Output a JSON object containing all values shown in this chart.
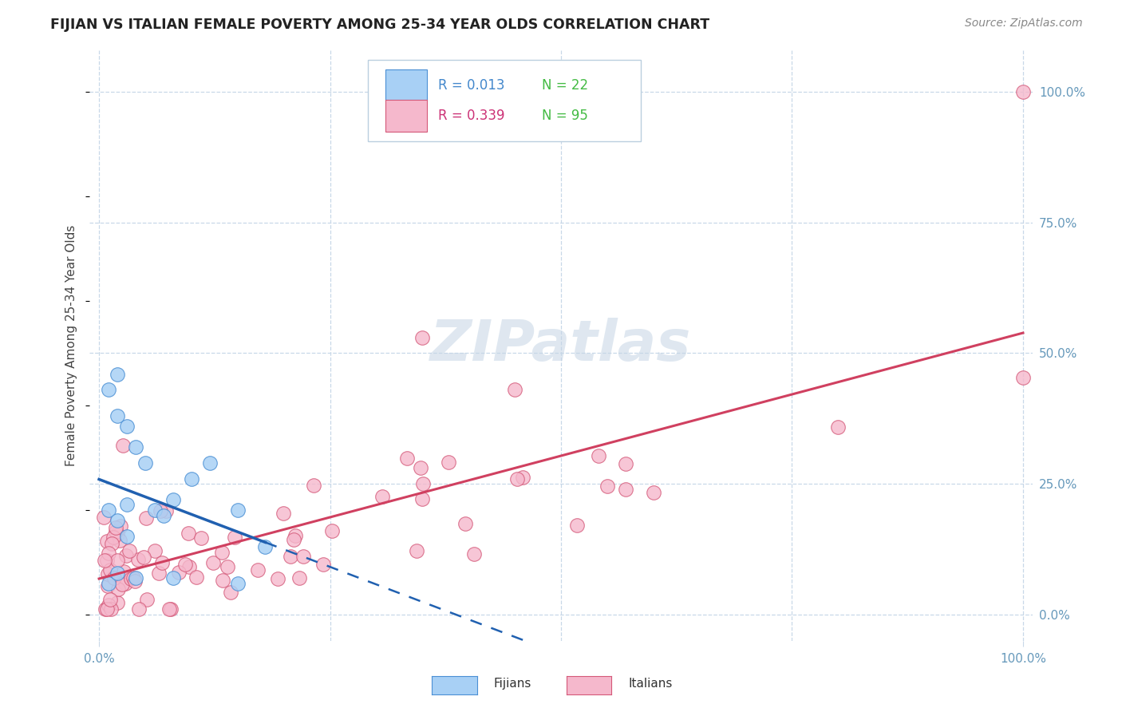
{
  "title": "FIJIAN VS ITALIAN FEMALE POVERTY AMONG 25-34 YEAR OLDS CORRELATION CHART",
  "source": "Source: ZipAtlas.com",
  "ylabel": "Female Poverty Among 25-34 Year Olds",
  "fijian_color": "#A8D0F5",
  "fijian_edge_color": "#4A8FD4",
  "italian_color": "#F5B8CC",
  "italian_edge_color": "#D45878",
  "fijian_line_color": "#2060B0",
  "italian_line_color": "#D04060",
  "legend_r_fijian": "R = 0.013",
  "legend_n_fijian": "N = 22",
  "legend_r_italian": "R = 0.339",
  "legend_n_italian": "N = 95",
  "fijian_r_color": "#4488CC",
  "fijian_n_color": "#44BB44",
  "italian_r_color": "#CC3377",
  "italian_n_color": "#44BB44",
  "watermark_color": "#D0DCE8",
  "grid_color": "#C8D8E8",
  "tick_color": "#6699BB",
  "title_color": "#222222",
  "source_color": "#888888"
}
